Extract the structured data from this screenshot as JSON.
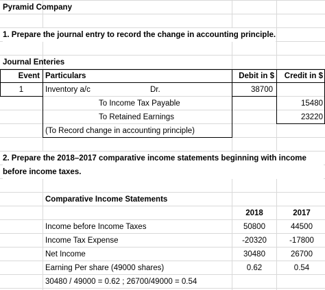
{
  "title": "Pyramid Company",
  "question1": "1. Prepare the journal entry to record the change in accounting principle.",
  "journal": {
    "title": "Journal Enteries",
    "headers": [
      "Event",
      "Particulars",
      "Debit in $",
      "Credit in $"
    ],
    "entry": {
      "event": 1,
      "debit_account": "Inventory a/c",
      "dr": "Dr.",
      "debit": 38700,
      "credits": [
        {
          "account": "To Income Tax Payable",
          "amount": 15480
        },
        {
          "account": "To Retained Earnings",
          "amount": 23220
        }
      ],
      "narration": "(To Record change in accounting principle)"
    }
  },
  "question2": "2. Prepare the 2018–2017 comparative income statements beginning with income before income taxes.",
  "statement": {
    "title": "Comparative Income Statements",
    "years": [
      2018,
      2017
    ],
    "rows": [
      {
        "label": "Income before Income Taxes",
        "values": [
          50800,
          44500
        ]
      },
      {
        "label": "Income Tax Expense",
        "values": [
          -20320,
          -17800
        ]
      },
      {
        "label": "Net Income",
        "values": [
          30480,
          26700
        ]
      },
      {
        "label": "Earning Per share (49000 shares)",
        "values": [
          0.62,
          0.54
        ]
      }
    ],
    "note": "30480 / 49000 = 0.62 ; 26700/49000 = 0.54"
  }
}
